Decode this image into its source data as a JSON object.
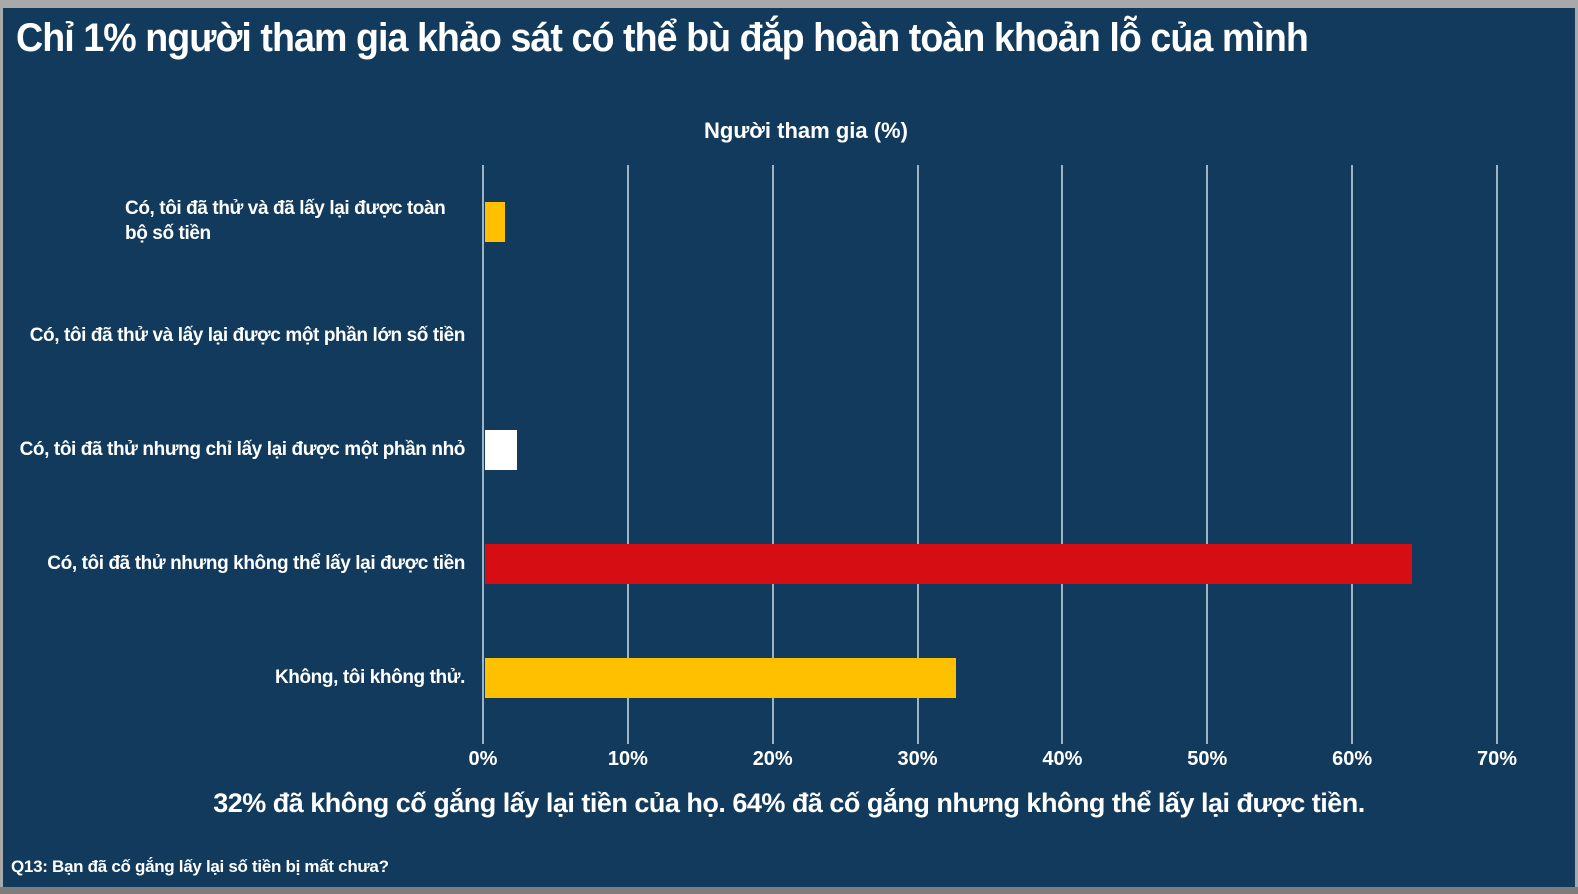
{
  "title": "Chỉ 1% người tham gia khảo sát có thể bù đắp hoàn toàn khoản lỗ của mình",
  "colors": {
    "background": "#113A5C",
    "frame": "#A9A9A9",
    "bottom_edge": "#7D7D7D",
    "gridline": "#9FB4C2",
    "text": "#FFFFFF"
  },
  "chart_data": {
    "type": "bar",
    "orientation": "horizontal",
    "title": "Người tham gia (%)",
    "categories": [
      "Có, tôi đã thử và đã lấy lại được toàn bộ số tiền",
      "Có, tôi đã thử và lấy lại được một phần lớn số tiền",
      "Có, tôi đã thử nhưng chỉ lấy lại được một phần nhỏ",
      "Có, tôi đã thử nhưng không thể lấy lại được tiền",
      "Không, tôi không thử."
    ],
    "values": [
      1.4,
      0,
      2.2,
      64,
      32.5
    ],
    "bar_colors": [
      "#FFC000",
      "#FFC000",
      "#FFFFFF",
      "#D60D12",
      "#FFC000"
    ],
    "x_ticks": [
      "0%",
      "10%",
      "20%",
      "30%",
      "40%",
      "50%",
      "60%",
      "70%"
    ],
    "xlim": [
      0,
      70
    ],
    "grid": true,
    "legend": false
  },
  "annotation": "32% đã không cố gắng lấy lại tiền của họ. 64% đã cố gắng nhưng không thể lấy lại được tiền.",
  "footnote": "Q13: Bạn đã cố gắng lấy lại số tiền bị mất chưa?"
}
